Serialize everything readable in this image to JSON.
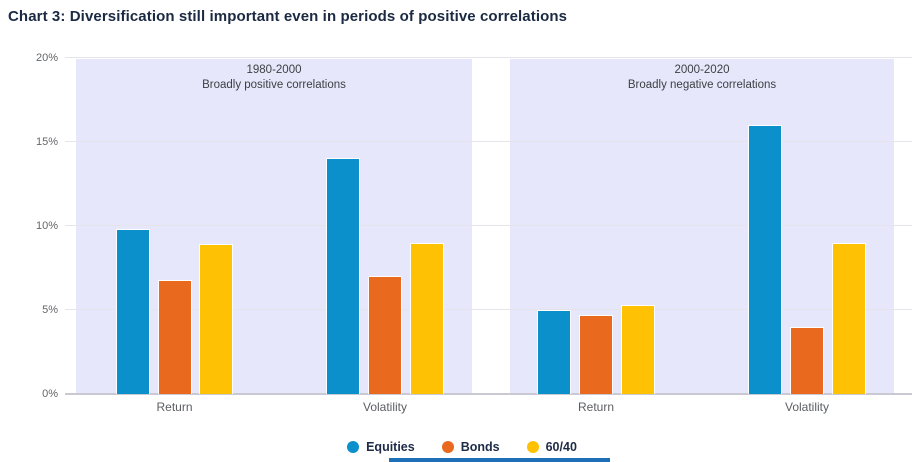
{
  "page": {
    "title": "Chart 3: Diversification still important even in periods of positive correlations"
  },
  "colors": {
    "equities": "#0b90cc",
    "bonds": "#e9691e",
    "sixty_forty": "#ffc103",
    "panel_background": "#e6e7fa",
    "gridline": "#e4e4ea",
    "axis_line": "#c9c9d4",
    "axis_label_text": "#63666a",
    "panel_header_text": "#3d3f44",
    "legend_text": "#1e2b47",
    "title_text": "#1b2942",
    "bottom_strip": "#1d70b7"
  },
  "chart_data": {
    "type": "bar",
    "title": "Chart 3: Diversification still important even in periods of positive correlations",
    "xlabel": "",
    "ylabel": "",
    "ylim": [
      0,
      20
    ],
    "y_ticks": [
      {
        "value": 20,
        "label": "20%"
      },
      {
        "value": 15,
        "label": "15%"
      },
      {
        "value": 10,
        "label": "10%"
      },
      {
        "value": 5,
        "label": "5%"
      },
      {
        "value": 0,
        "label": "0%"
      }
    ],
    "grid": true,
    "legend_position": "bottom",
    "panels": [
      {
        "id": "1980-2000",
        "header_line1": "1980-2000",
        "header_line2": "Broadly positive correlations",
        "categories": [
          "Return",
          "Volatility"
        ],
        "series": [
          {
            "name": "Equities",
            "color": "#0b90cc",
            "values": [
              9.8,
              14.0
            ]
          },
          {
            "name": "Bonds",
            "color": "#e9691e",
            "values": [
              6.8,
              7.0
            ]
          },
          {
            "name": "60/40",
            "color": "#ffc103",
            "values": [
              8.9,
              9.0
            ]
          }
        ]
      },
      {
        "id": "2000-2020",
        "header_line1": "2000-2020",
        "header_line2": "Broadly negative correlations",
        "categories": [
          "Return",
          "Volatility"
        ],
        "series": [
          {
            "name": "Equities",
            "color": "#0b90cc",
            "values": [
              5.0,
              16.0
            ]
          },
          {
            "name": "Bonds",
            "color": "#e9691e",
            "values": [
              4.7,
              4.0
            ]
          },
          {
            "name": "60/40",
            "color": "#ffc103",
            "values": [
              5.3,
              9.0
            ]
          }
        ]
      }
    ],
    "legend": [
      {
        "label": "Equities",
        "color": "#0b90cc"
      },
      {
        "label": "Bonds",
        "color": "#e9691e"
      },
      {
        "label": "60/40",
        "color": "#ffc103"
      }
    ]
  }
}
